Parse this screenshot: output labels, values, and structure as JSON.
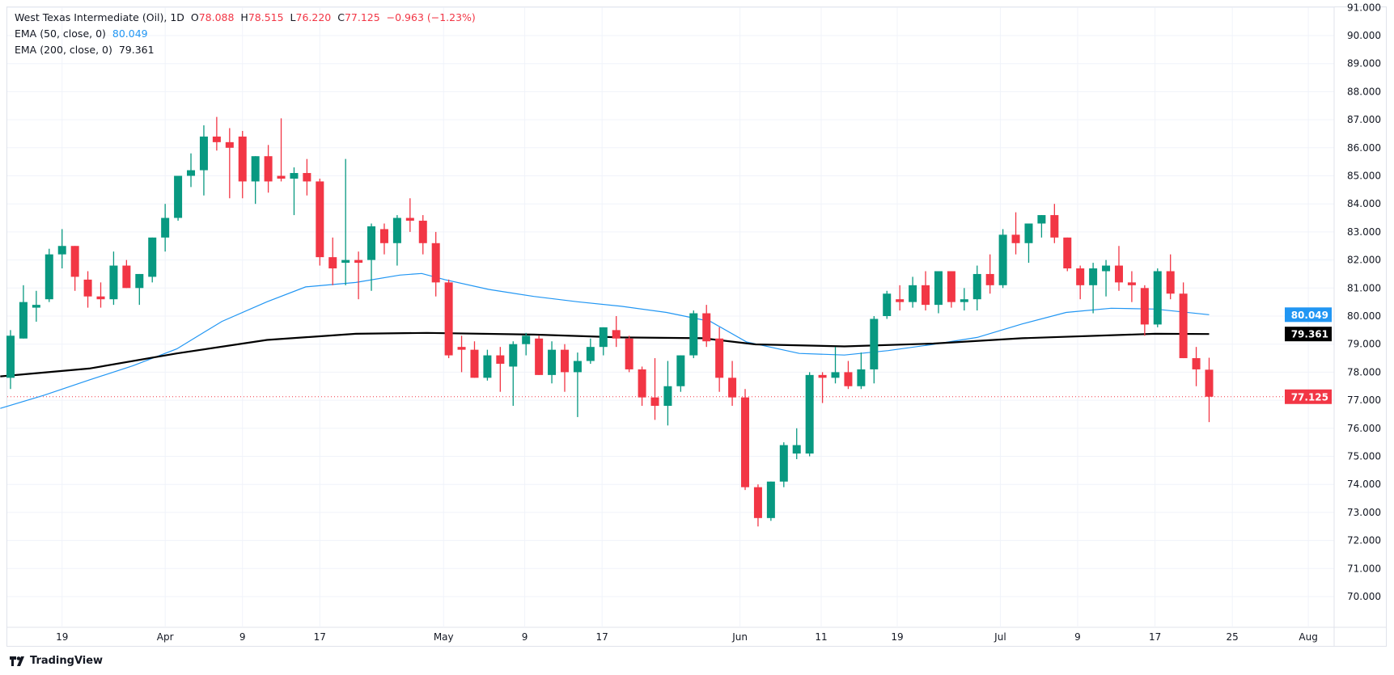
{
  "header": {
    "symbol": "West Texas Intermediate (Oil), 1D",
    "open_label": "O",
    "open": "78.088",
    "high_label": "H",
    "high": "78.515",
    "low_label": "L",
    "low": "76.220",
    "close_label": "C",
    "close": "77.125",
    "change": "−0.963 (−1.23%)",
    "ema50_label": "EMA (50, close, 0)",
    "ema50_value": "80.049",
    "ema200_label": "EMA (200, close, 0)",
    "ema200_value": "79.361"
  },
  "branding": {
    "logo_text": "TradingView"
  },
  "colors": {
    "up": "#089981",
    "down": "#f23645",
    "ema50": "#2196f3",
    "ema200": "#000000",
    "grid": "#f0f3fa",
    "axis_text": "#131722"
  },
  "chart_data": {
    "type": "candlestick",
    "title": "West Texas Intermediate (Oil), 1D",
    "ylim": [
      69,
      91
    ],
    "grid": true,
    "y_ticks": [
      "70.000",
      "71.000",
      "72.000",
      "73.000",
      "74.000",
      "75.000",
      "76.000",
      "77.000",
      "78.000",
      "79.000",
      "80.000",
      "81.000",
      "82.000",
      "83.000",
      "84.000",
      "85.000",
      "86.000",
      "87.000",
      "88.000",
      "89.000",
      "90.000",
      "91.000"
    ],
    "x_ticks": [
      {
        "label": "19",
        "bar": 4
      },
      {
        "label": "Apr",
        "bar": 12
      },
      {
        "label": "9",
        "bar": 18
      },
      {
        "label": "17",
        "bar": 24
      },
      {
        "label": "May",
        "bar": 33.6
      },
      {
        "label": "9",
        "bar": 39.9
      },
      {
        "label": "17",
        "bar": 45.9
      },
      {
        "label": "Jun",
        "bar": 56.6
      },
      {
        "label": "11",
        "bar": 62.9
      },
      {
        "label": "19",
        "bar": 68.8
      },
      {
        "label": "Jul",
        "bar": 76.8
      },
      {
        "label": "9",
        "bar": 82.8
      },
      {
        "label": "17",
        "bar": 88.8
      },
      {
        "label": "25",
        "bar": 94.8
      },
      {
        "label": "Aug",
        "bar": 100.7
      }
    ],
    "candles": [
      [
        77.8,
        79.5,
        77.4,
        79.3
      ],
      [
        79.2,
        81.1,
        79.2,
        80.5
      ],
      [
        80.3,
        80.9,
        79.8,
        80.4
      ],
      [
        80.6,
        82.4,
        80.5,
        82.2
      ],
      [
        82.2,
        83.1,
        81.7,
        82.5
      ],
      [
        82.5,
        82.5,
        80.9,
        81.4
      ],
      [
        81.3,
        81.6,
        80.3,
        80.7
      ],
      [
        80.7,
        81.2,
        80.3,
        80.6
      ],
      [
        80.6,
        82.3,
        80.4,
        81.8
      ],
      [
        81.8,
        82.0,
        81.0,
        81.0
      ],
      [
        81.0,
        81.5,
        80.4,
        81.5
      ],
      [
        81.4,
        82.8,
        81.2,
        82.8
      ],
      [
        82.8,
        84.0,
        82.3,
        83.5
      ],
      [
        83.5,
        85.0,
        83.4,
        85.0
      ],
      [
        85.0,
        85.8,
        84.6,
        85.2
      ],
      [
        85.2,
        86.8,
        84.3,
        86.4
      ],
      [
        86.4,
        87.1,
        85.9,
        86.2
      ],
      [
        86.2,
        86.7,
        84.2,
        86.0
      ],
      [
        86.4,
        86.6,
        84.2,
        84.8
      ],
      [
        84.8,
        85.7,
        84.0,
        85.7
      ],
      [
        85.7,
        86.1,
        84.4,
        84.8
      ],
      [
        85.0,
        87.05,
        84.8,
        84.9
      ],
      [
        84.9,
        85.3,
        83.6,
        85.1
      ],
      [
        85.1,
        85.6,
        84.3,
        84.8
      ],
      [
        84.8,
        84.9,
        81.8,
        82.1
      ],
      [
        82.1,
        82.8,
        81.1,
        81.7
      ],
      [
        81.9,
        85.6,
        81.1,
        82.0
      ],
      [
        82.0,
        82.3,
        80.6,
        81.9
      ],
      [
        82.0,
        83.3,
        80.9,
        83.2
      ],
      [
        83.1,
        83.3,
        82.2,
        82.6
      ],
      [
        82.6,
        83.6,
        81.8,
        83.5
      ],
      [
        83.5,
        84.2,
        83.0,
        83.4
      ],
      [
        83.4,
        83.6,
        82.2,
        82.6
      ],
      [
        82.6,
        83.0,
        80.7,
        81.2
      ],
      [
        81.2,
        81.3,
        78.5,
        78.6
      ],
      [
        78.9,
        79.3,
        78.0,
        78.8
      ],
      [
        78.8,
        79.1,
        77.8,
        77.8
      ],
      [
        77.8,
        78.8,
        77.7,
        78.6
      ],
      [
        78.6,
        78.9,
        77.3,
        78.3
      ],
      [
        78.2,
        79.1,
        76.8,
        79.0
      ],
      [
        79.0,
        79.4,
        78.6,
        79.3
      ],
      [
        79.2,
        79.3,
        77.9,
        77.9
      ],
      [
        77.9,
        79.1,
        77.6,
        78.8
      ],
      [
        78.8,
        79.0,
        77.3,
        78.0
      ],
      [
        78.0,
        78.7,
        76.4,
        78.4
      ],
      [
        78.4,
        79.2,
        78.3,
        78.9
      ],
      [
        78.9,
        79.6,
        78.6,
        79.6
      ],
      [
        79.5,
        80.0,
        78.9,
        79.2
      ],
      [
        79.2,
        79.3,
        78.0,
        78.1
      ],
      [
        78.1,
        78.2,
        76.8,
        77.1
      ],
      [
        77.1,
        78.5,
        76.3,
        76.8
      ],
      [
        76.8,
        78.4,
        76.1,
        77.5
      ],
      [
        77.5,
        78.6,
        77.3,
        78.6
      ],
      [
        78.6,
        80.2,
        78.5,
        80.1
      ],
      [
        80.1,
        80.4,
        78.9,
        79.1
      ],
      [
        79.2,
        79.6,
        77.3,
        77.8
      ],
      [
        77.8,
        78.4,
        76.8,
        77.1
      ],
      [
        77.1,
        77.4,
        73.8,
        73.9
      ],
      [
        73.9,
        74.0,
        72.5,
        72.8
      ],
      [
        72.8,
        74.1,
        72.7,
        74.1
      ],
      [
        74.1,
        75.5,
        73.9,
        75.4
      ],
      [
        75.1,
        76.0,
        74.9,
        75.4
      ],
      [
        75.1,
        78.0,
        75.0,
        77.9
      ],
      [
        77.9,
        78.0,
        76.9,
        77.8
      ],
      [
        77.8,
        78.9,
        77.6,
        78.0
      ],
      [
        78.0,
        78.4,
        77.4,
        77.5
      ],
      [
        77.5,
        78.7,
        77.4,
        78.1
      ],
      [
        78.1,
        80.0,
        77.6,
        79.9
      ],
      [
        80.0,
        80.9,
        79.9,
        80.8
      ],
      [
        80.6,
        81.1,
        80.2,
        80.5
      ],
      [
        80.5,
        81.4,
        80.3,
        81.1
      ],
      [
        81.1,
        81.6,
        80.2,
        80.4
      ],
      [
        80.4,
        81.6,
        80.1,
        81.6
      ],
      [
        81.6,
        81.6,
        80.3,
        80.5
      ],
      [
        80.5,
        81.0,
        80.2,
        80.6
      ],
      [
        80.6,
        81.8,
        80.2,
        81.5
      ],
      [
        81.5,
        82.2,
        80.8,
        81.1
      ],
      [
        81.1,
        83.1,
        81.0,
        82.9
      ],
      [
        82.9,
        83.7,
        82.2,
        82.6
      ],
      [
        82.6,
        83.3,
        81.9,
        83.3
      ],
      [
        83.3,
        83.6,
        82.8,
        83.6
      ],
      [
        83.6,
        84.0,
        82.6,
        82.8
      ],
      [
        82.8,
        82.8,
        81.6,
        81.7
      ],
      [
        81.7,
        81.8,
        80.6,
        81.1
      ],
      [
        81.1,
        81.9,
        80.1,
        81.7
      ],
      [
        81.6,
        82.0,
        80.7,
        81.8
      ],
      [
        81.8,
        82.5,
        80.9,
        81.2
      ],
      [
        81.2,
        81.6,
        80.5,
        81.1
      ],
      [
        81.0,
        81.1,
        79.3,
        79.7
      ],
      [
        79.7,
        81.7,
        79.6,
        81.6
      ],
      [
        81.6,
        82.2,
        80.6,
        80.8
      ],
      [
        80.8,
        81.2,
        78.5,
        78.5
      ],
      [
        78.5,
        78.9,
        77.5,
        78.1
      ],
      [
        78.088,
        78.515,
        76.22,
        77.125
      ]
    ],
    "candle_fields": [
      "open",
      "high",
      "low",
      "close"
    ],
    "ema50": [
      [
        -0.8,
        76.71
      ],
      [
        2.6,
        77.18
      ],
      [
        6.1,
        77.72
      ],
      [
        9.5,
        78.23
      ],
      [
        12.9,
        78.83
      ],
      [
        16.4,
        79.81
      ],
      [
        19.9,
        80.51
      ],
      [
        22.9,
        81.04
      ],
      [
        26.8,
        81.2
      ],
      [
        30.2,
        81.46
      ],
      [
        31.9,
        81.52
      ],
      [
        33.7,
        81.3
      ],
      [
        37.1,
        80.95
      ],
      [
        40.6,
        80.7
      ],
      [
        44.0,
        80.51
      ],
      [
        47.4,
        80.35
      ],
      [
        50.9,
        80.13
      ],
      [
        54.3,
        79.81
      ],
      [
        57.1,
        79.08
      ],
      [
        61.2,
        78.67
      ],
      [
        64.7,
        78.61
      ],
      [
        68.1,
        78.77
      ],
      [
        71.6,
        78.99
      ],
      [
        75.0,
        79.24
      ],
      [
        78.5,
        79.72
      ],
      [
        81.9,
        80.13
      ],
      [
        85.4,
        80.28
      ],
      [
        88.8,
        80.25
      ],
      [
        93.0,
        80.049
      ]
    ],
    "ema200": [
      [
        -0.8,
        77.85
      ],
      [
        6.1,
        78.13
      ],
      [
        12.9,
        78.67
      ],
      [
        19.9,
        79.15
      ],
      [
        26.8,
        79.37
      ],
      [
        32.3,
        79.4
      ],
      [
        40.6,
        79.34
      ],
      [
        47.4,
        79.24
      ],
      [
        53.7,
        79.21
      ],
      [
        57.8,
        78.99
      ],
      [
        64.7,
        78.92
      ],
      [
        71.6,
        79.02
      ],
      [
        78.5,
        79.21
      ],
      [
        88.8,
        79.37
      ],
      [
        93.0,
        79.361
      ]
    ],
    "last_price": 77.125,
    "price_labels": {
      "ema50": "80.049",
      "ema200": "79.361",
      "last": "77.125"
    }
  }
}
